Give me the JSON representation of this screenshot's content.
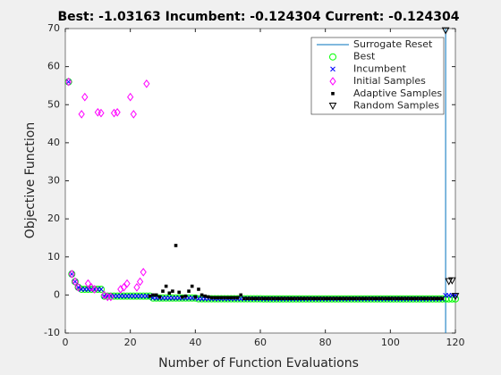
{
  "chart_data": {
    "type": "scatter",
    "title": "Best: -1.03163 Incumbent: -0.124304 Current: -0.124304",
    "xlabel": "Number of Function Evaluations",
    "ylabel": "Objective Function",
    "xlim": [
      0,
      120
    ],
    "xticks": [
      0,
      20,
      40,
      60,
      80,
      100,
      120
    ],
    "ylim": [
      -10,
      70
    ],
    "yticks": [
      -10,
      0,
      10,
      20,
      30,
      40,
      50,
      60,
      70
    ],
    "legend": "upper right",
    "x": [
      1,
      2,
      3,
      4,
      5,
      6,
      7,
      8,
      9,
      10,
      11,
      12,
      13,
      14,
      15,
      16,
      17,
      18,
      19,
      20,
      21,
      22,
      23,
      24,
      25,
      26,
      27,
      28,
      29,
      30,
      31,
      32,
      33,
      34,
      35,
      36,
      37,
      38,
      39,
      40,
      41,
      42,
      43,
      44,
      45,
      46,
      47,
      48,
      49,
      50,
      51,
      52,
      53,
      54,
      55,
      56,
      57,
      58,
      59,
      60,
      61,
      62,
      63,
      64,
      65,
      66,
      67,
      68,
      69,
      70,
      71,
      72,
      73,
      74,
      75,
      76,
      77,
      78,
      79,
      80,
      81,
      82,
      83,
      84,
      85,
      86,
      87,
      88,
      89,
      90,
      91,
      92,
      93,
      94,
      95,
      96,
      97,
      98,
      99,
      100,
      101,
      102,
      103,
      104,
      105,
      106,
      107,
      108,
      109,
      110,
      111,
      112,
      113,
      114,
      115,
      116,
      117,
      118,
      119,
      120
    ],
    "series": [
      {
        "name": "Surrogate Reset",
        "marker": "line",
        "color": "#0072bd",
        "x": [
          117,
          117
        ],
        "values": [
          -10,
          70
        ]
      },
      {
        "name": "Best",
        "marker": "o",
        "color": "#00ff00",
        "values": [
          56,
          5.5,
          3.5,
          2,
          1.5,
          1.5,
          1.5,
          1.5,
          1.5,
          1.5,
          1.5,
          -0.3,
          -0.3,
          -0.3,
          -0.3,
          -0.3,
          -0.3,
          -0.3,
          -0.3,
          -0.3,
          -0.3,
          -0.3,
          -0.3,
          -0.3,
          -0.3,
          -0.3,
          -0.8,
          -0.8,
          -0.8,
          -0.8,
          -0.8,
          -0.8,
          -0.8,
          -0.8,
          -0.8,
          -0.8,
          -0.8,
          -0.8,
          -0.8,
          -0.8,
          -1,
          -1,
          -1,
          -1,
          -1,
          -1,
          -1,
          -1,
          -1,
          -1,
          -1,
          -1,
          -1,
          -1,
          -1,
          -1,
          -1,
          -1,
          -1,
          -1,
          -1.03,
          -1.03,
          -1.03,
          -1.03,
          -1.03,
          -1.03,
          -1.03,
          -1.03,
          -1.03,
          -1.03,
          -1.03,
          -1.03,
          -1.03,
          -1.03,
          -1.03,
          -1.03,
          -1.03,
          -1.03,
          -1.03,
          -1.03,
          -1.03,
          -1.03,
          -1.03,
          -1.03,
          -1.03,
          -1.03,
          -1.03,
          -1.03,
          -1.03,
          -1.03,
          -1.03,
          -1.03,
          -1.03,
          -1.03,
          -1.03,
          -1.03,
          -1.03,
          -1.03,
          -1.03,
          -1.03,
          -1.03,
          -1.03,
          -1.03,
          -1.03,
          -1.03,
          -1.03,
          -1.03,
          -1.03,
          -1.03,
          -1.03,
          -1.03,
          -1.03,
          -1.03,
          -1.03,
          -1.03,
          -1.03,
          -1.03,
          -1.03,
          -1.03,
          -1.03
        ]
      },
      {
        "name": "Incumbent",
        "marker": "x",
        "color": "#0000ff",
        "values": [
          56,
          5.5,
          3.5,
          2,
          1.5,
          1.5,
          1.5,
          1.5,
          1.5,
          1.5,
          1.5,
          -0.3,
          -0.3,
          -0.3,
          -0.3,
          -0.3,
          -0.3,
          -0.3,
          -0.3,
          -0.3,
          -0.3,
          -0.3,
          -0.3,
          -0.3,
          -0.3,
          -0.3,
          -0.8,
          -0.8,
          -0.8,
          -0.8,
          -0.8,
          -0.8,
          -0.8,
          -0.8,
          -0.8,
          -0.8,
          -0.8,
          -0.8,
          -0.8,
          -0.8,
          -1,
          -1,
          -1,
          -1,
          -1,
          -1,
          -1,
          -1,
          -1,
          -1,
          -1,
          -1,
          -1,
          -1,
          -1,
          -1,
          -1,
          -1,
          -1,
          -1,
          -1.03,
          -1.03,
          -1.03,
          -1.03,
          -1.03,
          -1.03,
          -1.03,
          -1.03,
          -1.03,
          -1.03,
          -1.03,
          -1.03,
          -1.03,
          -1.03,
          -1.03,
          -1.03,
          -1.03,
          -1.03,
          -1.03,
          -1.03,
          -1.03,
          -1.03,
          -1.03,
          -1.03,
          -1.03,
          -1.03,
          -1.03,
          -1.03,
          -1.03,
          -1.03,
          -1.03,
          -1.03,
          -1.03,
          -1.03,
          -1.03,
          -1.03,
          -1.03,
          -1.03,
          -1.03,
          -1.03,
          -1.03,
          -1.03,
          -1.03,
          -1.03,
          -1.03,
          -1.03,
          -1.03,
          -1.03,
          -1.03,
          -1.03,
          -1.03,
          -1.03,
          -1.03,
          -1.03,
          -1.03,
          -1.03,
          -0.12,
          -0.12,
          -0.12,
          -0.12
        ]
      },
      {
        "name": "Initial Samples",
        "marker": "d",
        "color": "#ff00ff",
        "x": [
          1,
          2,
          3,
          4,
          5,
          6,
          7,
          8,
          9,
          10,
          11,
          12,
          13,
          14,
          15,
          16,
          17,
          18,
          19,
          20,
          21,
          22,
          23,
          24,
          25
        ],
        "values": [
          56,
          5.5,
          3.5,
          2,
          47.5,
          52,
          3,
          2,
          1.5,
          48,
          47.8,
          0,
          -0.5,
          -0.5,
          47.8,
          48,
          1.5,
          2,
          3,
          52,
          47.5,
          2,
          3.5,
          6,
          55.5
        ]
      },
      {
        "name": "Adaptive Samples",
        "marker": "s",
        "color": "#000000",
        "x": [
          26,
          27,
          28,
          29,
          30,
          31,
          32,
          33,
          34,
          35,
          36,
          37,
          38,
          39,
          40,
          41,
          42,
          43,
          44,
          45,
          46,
          47,
          48,
          49,
          50,
          51,
          52,
          53,
          54,
          55,
          56,
          57,
          58,
          59,
          60,
          61,
          62,
          63,
          64,
          65,
          66,
          67,
          68,
          69,
          70,
          71,
          72,
          73,
          74,
          75,
          76,
          77,
          78,
          79,
          80,
          81,
          82,
          83,
          84,
          85,
          86,
          87,
          88,
          89,
          90,
          91,
          92,
          93,
          94,
          95,
          96,
          97,
          98,
          99,
          100,
          101,
          102,
          103,
          104,
          105,
          106,
          107,
          108,
          109,
          110,
          111,
          112,
          113,
          114,
          115,
          116
        ],
        "values": [
          -0.3,
          0,
          0,
          -0.5,
          1,
          2.3,
          0.5,
          1,
          13,
          0.7,
          -0.5,
          -0.3,
          1,
          2.3,
          -0.5,
          1.5,
          0,
          -0.3,
          -0.5,
          -0.7,
          -0.7,
          -0.7,
          -0.7,
          -0.7,
          -0.7,
          -0.7,
          -0.7,
          -0.7,
          0,
          -0.9,
          -0.9,
          -0.9,
          -0.9,
          -0.9,
          -0.9,
          -0.9,
          -0.9,
          -0.9,
          -0.9,
          -0.9,
          -0.9,
          -0.9,
          -0.9,
          -0.9,
          -0.9,
          -0.9,
          -0.9,
          -0.9,
          -0.9,
          -0.9,
          -0.9,
          -0.9,
          -0.9,
          -0.9,
          -0.9,
          -0.9,
          -0.9,
          -0.9,
          -0.9,
          -0.9,
          -0.9,
          -0.9,
          -0.9,
          -0.9,
          -0.9,
          -0.9,
          -0.9,
          -0.9,
          -0.9,
          -0.9,
          -0.9,
          -0.9,
          -0.9,
          -0.9,
          -0.9,
          -0.9,
          -0.9,
          -0.9,
          -0.9,
          -0.9,
          -0.9,
          -0.9,
          -0.9,
          -0.9,
          -0.9,
          -0.9,
          -0.9,
          -0.9,
          -0.9,
          -0.9,
          -0.9
        ]
      },
      {
        "name": "Random Samples",
        "marker": "v",
        "color": "#000000",
        "x": [
          117,
          118,
          119,
          120
        ],
        "values": [
          69.5,
          3.6,
          3.8,
          -0.3
        ]
      }
    ]
  }
}
